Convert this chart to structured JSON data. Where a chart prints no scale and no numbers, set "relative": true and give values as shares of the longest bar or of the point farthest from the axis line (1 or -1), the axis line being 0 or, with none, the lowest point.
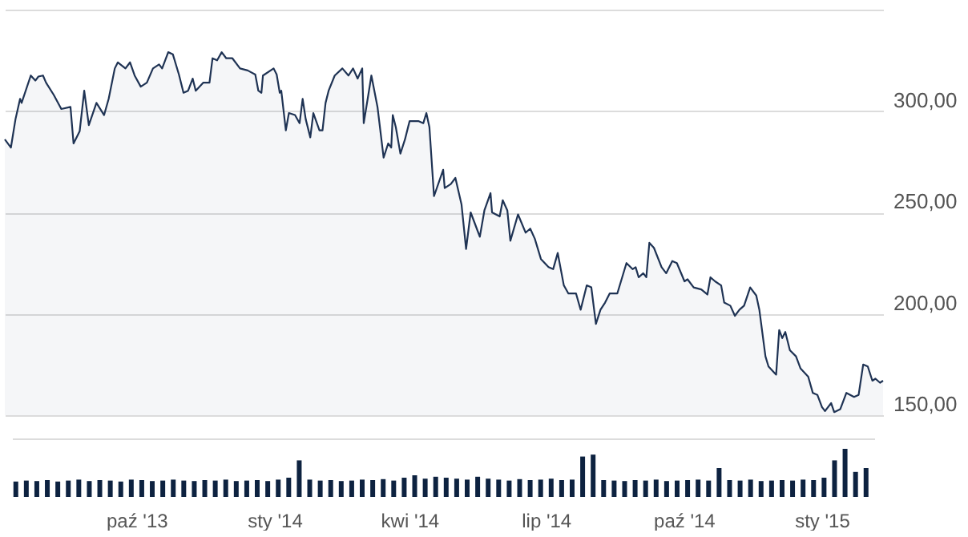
{
  "chart_data": [
    {
      "type": "area",
      "x": [
        "2013-07-10",
        "2013-07-14",
        "2013-07-17",
        "2013-07-20",
        "2013-07-21",
        "2013-07-27",
        "2013-07-30",
        "2013-08-01",
        "2013-08-04",
        "2013-08-06",
        "2013-08-11",
        "2013-08-16",
        "2013-08-22",
        "2013-08-24",
        "2013-08-28",
        "2013-08-31",
        "2013-09-03",
        "2013-09-08",
        "2013-09-13",
        "2013-09-16",
        "2013-09-20",
        "2013-09-22",
        "2013-09-27",
        "2013-09-30",
        "2013-10-03",
        "2013-10-07",
        "2013-10-11",
        "2013-10-15",
        "2013-10-19",
        "2013-10-21",
        "2013-10-25",
        "2013-10-28",
        "2013-11-01",
        "2013-11-04",
        "2013-11-07",
        "2013-11-10",
        "2013-11-12",
        "2013-11-17",
        "2013-11-21",
        "2013-11-23",
        "2013-11-26",
        "2013-11-29",
        "2013-12-02",
        "2013-12-06",
        "2013-12-11",
        "2013-12-16",
        "2013-12-21",
        "2013-12-23",
        "2013-12-25",
        "2013-12-26",
        "2014-01-02",
        "2014-01-04",
        "2014-01-06",
        "2014-01-07",
        "2014-01-10",
        "2014-01-12",
        "2014-01-16",
        "2014-01-19",
        "2014-01-21",
        "2014-01-23",
        "2014-01-26",
        "2014-01-28",
        "2014-02-01",
        "2014-02-03",
        "2014-02-05",
        "2014-02-07",
        "2014-02-11",
        "2014-02-16",
        "2014-02-20",
        "2014-02-23",
        "2014-02-26",
        "2014-03-01",
        "2014-03-02",
        "2014-03-05",
        "2014-03-07",
        "2014-03-11",
        "2014-03-15",
        "2014-03-18",
        "2014-03-20",
        "2014-03-21",
        "2014-03-23",
        "2014-03-26",
        "2014-03-29",
        "2014-04-01",
        "2014-04-07",
        "2014-04-10",
        "2014-04-12",
        "2014-04-14",
        "2014-04-17",
        "2014-04-23",
        "2014-04-24",
        "2014-04-28",
        "2014-05-01",
        "2014-05-05",
        "2014-05-08",
        "2014-05-11",
        "2014-05-15",
        "2014-05-17",
        "2014-05-20",
        "2014-05-24",
        "2014-05-25",
        "2014-05-30",
        "2014-06-01",
        "2014-06-04",
        "2014-06-06",
        "2014-06-11",
        "2014-06-16",
        "2014-06-19",
        "2014-06-22",
        "2014-06-26",
        "2014-07-01",
        "2014-07-04",
        "2014-07-07",
        "2014-07-11",
        "2014-07-14",
        "2014-07-19",
        "2014-07-22",
        "2014-07-26",
        "2014-07-29",
        "2014-08-01",
        "2014-08-04",
        "2014-08-07",
        "2014-08-10",
        "2014-08-15",
        "2014-08-21",
        "2014-08-25",
        "2014-08-27",
        "2014-08-29",
        "2014-09-01",
        "2014-09-03",
        "2014-09-05",
        "2014-09-08",
        "2014-09-13",
        "2014-09-16",
        "2014-09-20",
        "2014-09-23",
        "2014-09-28",
        "2014-09-30",
        "2014-10-04",
        "2014-10-09",
        "2014-10-13",
        "2014-10-15",
        "2014-10-18",
        "2014-10-22",
        "2014-10-24",
        "2014-10-28",
        "2014-10-31",
        "2014-11-03",
        "2014-11-06",
        "2014-11-10",
        "2014-11-14",
        "2014-11-16",
        "2014-11-20",
        "2014-11-22",
        "2014-11-27",
        "2014-11-29",
        "2014-12-01",
        "2014-12-03",
        "2014-12-06",
        "2014-12-10",
        "2014-12-13",
        "2014-12-18",
        "2014-12-21",
        "2014-12-24",
        "2014-12-27",
        "2014-12-29",
        "2015-01-02",
        "2015-01-04",
        "2015-01-08",
        "2015-01-12",
        "2015-01-17",
        "2015-01-20",
        "2015-01-23",
        "2015-01-26",
        "2015-01-29",
        "2015-01-31",
        "2015-02-03",
        "2015-02-05"
      ],
      "series": [
        {
          "color": "#1f3354",
          "values": [
            286,
            282,
            296,
            306,
            304,
            317.5,
            315,
            317,
            317.5,
            314,
            308,
            301,
            302,
            284,
            290,
            310,
            293,
            304,
            298,
            306,
            321,
            324,
            321,
            324,
            317.5,
            312,
            314,
            321,
            323,
            321,
            329,
            328,
            318,
            309,
            310,
            316,
            310,
            314,
            314,
            326,
            325,
            329,
            326,
            326,
            321,
            320,
            318,
            310,
            309,
            317.5,
            321,
            318,
            309,
            310,
            290.5,
            299,
            298,
            294,
            306,
            296,
            287,
            299,
            290.5,
            290.5,
            304,
            310,
            317.5,
            321,
            317.5,
            321,
            316,
            321,
            294,
            308,
            317.5,
            302,
            277,
            284,
            282,
            298,
            292,
            279,
            286,
            295,
            295,
            294,
            299,
            292,
            258,
            271,
            262,
            264,
            267,
            254,
            232,
            250,
            242,
            238,
            251,
            259.5,
            250,
            248,
            256,
            251,
            236,
            249,
            240,
            242,
            237,
            227,
            223,
            222,
            230,
            214,
            210,
            210,
            202,
            214,
            213,
            195,
            202,
            205.5,
            210,
            210,
            225,
            222,
            223,
            218,
            220,
            218,
            235,
            232.5,
            223,
            220,
            226,
            225,
            216,
            217,
            213,
            212,
            209.5,
            218,
            216,
            214,
            205.5,
            204,
            199,
            202,
            204,
            213,
            209,
            202,
            179,
            174,
            170,
            192,
            188,
            191,
            182,
            179,
            173,
            169,
            161,
            160,
            154,
            152,
            156,
            151.5,
            153,
            161,
            159,
            160,
            175,
            174,
            167,
            168,
            166,
            167
          ]
        }
      ],
      "xlim": [
        "2013-07-10",
        "2015-02-05"
      ],
      "ylim": [
        150,
        350
      ],
      "yticks": [
        {
          "value": 150,
          "label": "150,00"
        },
        {
          "value": 200,
          "label": "200,00"
        },
        {
          "value": 250,
          "label": "250,00"
        },
        {
          "value": 300,
          "label": "300,00"
        },
        {
          "value": 350,
          "label": null
        }
      ],
      "grid": "y",
      "tick_labels": "y"
    },
    {
      "type": "bar",
      "relative": true,
      "color": "#0d2240",
      "x": [
        "2013-07-12",
        "2013-07-19",
        "2013-07-26",
        "2013-08-02",
        "2013-08-09",
        "2013-08-16",
        "2013-08-23",
        "2013-08-30",
        "2013-09-06",
        "2013-09-13",
        "2013-09-20",
        "2013-09-27",
        "2013-10-04",
        "2013-10-11",
        "2013-10-18",
        "2013-10-25",
        "2013-11-01",
        "2013-11-08",
        "2013-11-15",
        "2013-11-22",
        "2013-11-29",
        "2013-12-06",
        "2013-12-13",
        "2013-12-20",
        "2013-12-27",
        "2014-01-03",
        "2014-01-10",
        "2014-01-17",
        "2014-01-24",
        "2014-01-31",
        "2014-02-07",
        "2014-02-14",
        "2014-02-21",
        "2014-02-28",
        "2014-03-07",
        "2014-03-14",
        "2014-03-21",
        "2014-03-28",
        "2014-04-04",
        "2014-04-11",
        "2014-04-18",
        "2014-04-25",
        "2014-05-02",
        "2014-05-09",
        "2014-05-16",
        "2014-05-23",
        "2014-05-30",
        "2014-06-06",
        "2014-06-13",
        "2014-06-20",
        "2014-06-27",
        "2014-07-04",
        "2014-07-11",
        "2014-07-18",
        "2014-07-25",
        "2014-08-01",
        "2014-08-08",
        "2014-08-15",
        "2014-08-22",
        "2014-08-29",
        "2014-09-05",
        "2014-09-12",
        "2014-09-19",
        "2014-09-26",
        "2014-10-03",
        "2014-10-10",
        "2014-10-17",
        "2014-10-24",
        "2014-10-31",
        "2014-11-07",
        "2014-11-14",
        "2014-11-21",
        "2014-11-28",
        "2014-12-05",
        "2014-12-12",
        "2014-12-19",
        "2014-12-26",
        "2015-01-02",
        "2015-01-09",
        "2015-01-16",
        "2015-01-23",
        "2015-01-30"
      ],
      "values": [
        0.32,
        0.34,
        0.33,
        0.35,
        0.32,
        0.34,
        0.36,
        0.33,
        0.35,
        0.34,
        0.32,
        0.36,
        0.35,
        0.33,
        0.34,
        0.36,
        0.34,
        0.33,
        0.35,
        0.34,
        0.36,
        0.33,
        0.34,
        0.35,
        0.33,
        0.36,
        0.4,
        0.76,
        0.36,
        0.34,
        0.35,
        0.33,
        0.34,
        0.36,
        0.35,
        0.37,
        0.34,
        0.4,
        0.45,
        0.38,
        0.42,
        0.4,
        0.38,
        0.36,
        0.42,
        0.38,
        0.36,
        0.34,
        0.37,
        0.35,
        0.36,
        0.38,
        0.35,
        0.36,
        0.84,
        0.88,
        0.35,
        0.34,
        0.33,
        0.35,
        0.34,
        0.36,
        0.33,
        0.34,
        0.35,
        0.36,
        0.34,
        0.6,
        0.35,
        0.34,
        0.36,
        0.33,
        0.34,
        0.35,
        0.34,
        0.36,
        0.35,
        0.4,
        0.76,
        1,
        0.52,
        0.6
      ],
      "xlim": [
        "2013-07-10",
        "2015-02-05"
      ],
      "xticks": [
        {
          "value": "2013-10-01",
          "label": "paź '13"
        },
        {
          "value": "2014-01-01",
          "label": "sty '14"
        },
        {
          "value": "2014-04-01",
          "label": "kwi '14"
        },
        {
          "value": "2014-07-01",
          "label": "lip '14"
        },
        {
          "value": "2014-10-01",
          "label": "paź '14"
        },
        {
          "value": "2015-01-01",
          "label": "sty '15"
        }
      ],
      "tick_labels": "x"
    }
  ]
}
